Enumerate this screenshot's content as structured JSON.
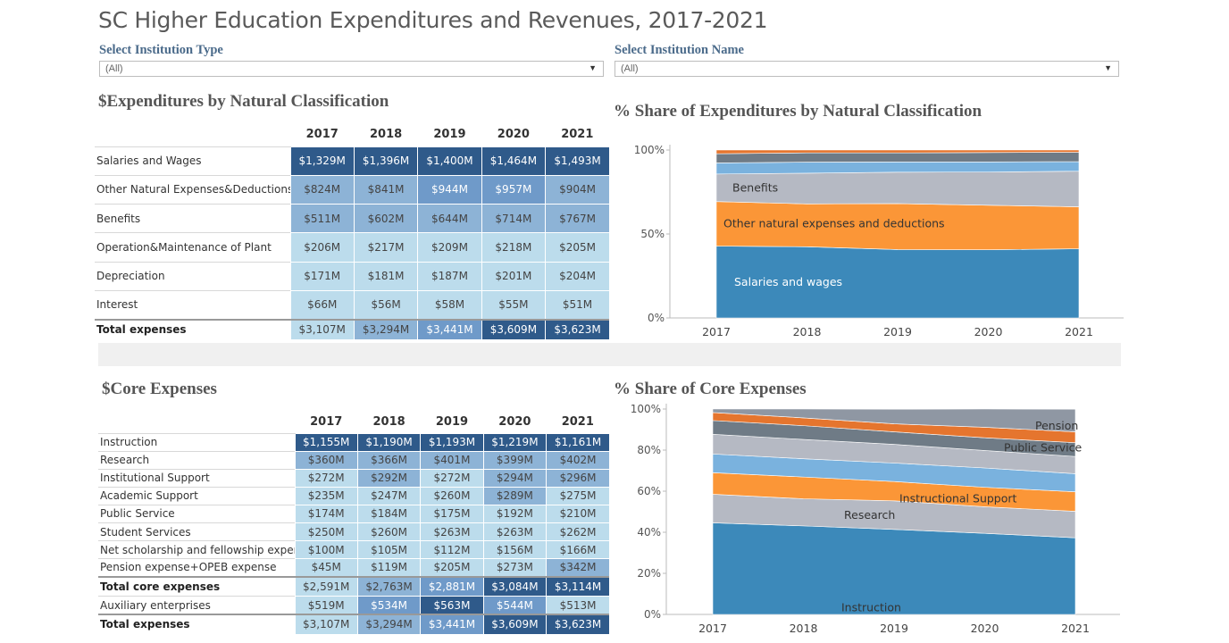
{
  "title": "SC Higher Education Expenditures and Revenues, 2017-2021",
  "filters": {
    "institution_type": {
      "label": "Select Institution Type",
      "value": "(All)"
    },
    "institution_name": {
      "label": "Select Institution Name",
      "value": "(All)"
    }
  },
  "colors": {
    "heat_light": "#bcdcec",
    "heat_mid": "#8db3d6",
    "heat_midhigh": "#6f9ac9",
    "heat_dark": "#2f5a8a",
    "salaries": "#3c89ba",
    "orange": "#fb9637",
    "gray_light": "#b5b9c3",
    "blue_light": "#7ab2de",
    "gray_dark": "#6f7b86",
    "orange_dark": "#e5752e",
    "gray_mid": "#8f97a3"
  },
  "expenditures_table": {
    "title": "$Expenditures by Natural Classification",
    "years": [
      "2017",
      "2018",
      "2019",
      "2020",
      "2021"
    ],
    "rows": [
      {
        "label": "Salaries and Wages",
        "values": [
          "$1,329M",
          "$1,396M",
          "$1,400M",
          "$1,464M",
          "$1,493M"
        ],
        "shades": [
          "dark",
          "dark",
          "dark",
          "dark",
          "dark"
        ]
      },
      {
        "label": "Other Natural Expenses&Deductions",
        "values": [
          "$824M",
          "$841M",
          "$944M",
          "$957M",
          "$904M"
        ],
        "shades": [
          "mid",
          "mid",
          "midhigh",
          "midhigh",
          "mid"
        ]
      },
      {
        "label": "Benefits",
        "values": [
          "$511M",
          "$602M",
          "$644M",
          "$714M",
          "$767M"
        ],
        "shades": [
          "mid",
          "mid",
          "mid",
          "mid",
          "mid"
        ]
      },
      {
        "label": "Operation&Maintenance of Plant",
        "values": [
          "$206M",
          "$217M",
          "$209M",
          "$218M",
          "$205M"
        ],
        "shades": [
          "light",
          "light",
          "light",
          "light",
          "light"
        ]
      },
      {
        "label": "Depreciation",
        "values": [
          "$171M",
          "$181M",
          "$187M",
          "$201M",
          "$204M"
        ],
        "shades": [
          "light",
          "light",
          "light",
          "light",
          "light"
        ]
      },
      {
        "label": "Interest",
        "values": [
          "$66M",
          "$56M",
          "$58M",
          "$55M",
          "$51M"
        ],
        "shades": [
          "light",
          "light",
          "light",
          "light",
          "light"
        ]
      }
    ],
    "total": {
      "label": "Total expenses",
      "values": [
        "$3,107M",
        "$3,294M",
        "$3,441M",
        "$3,609M",
        "$3,623M"
      ],
      "shades": [
        "light",
        "mid",
        "midhigh",
        "dark",
        "dark"
      ]
    }
  },
  "core_table": {
    "title": "$Core Expenses",
    "years": [
      "2017",
      "2018",
      "2019",
      "2020",
      "2021"
    ],
    "rows": [
      {
        "label": "Instruction",
        "values": [
          "$1,155M",
          "$1,190M",
          "$1,193M",
          "$1,219M",
          "$1,161M"
        ],
        "shades": [
          "dark",
          "dark",
          "dark",
          "dark",
          "dark"
        ],
        "bold": false
      },
      {
        "label": "Research",
        "values": [
          "$360M",
          "$366M",
          "$401M",
          "$399M",
          "$402M"
        ],
        "shades": [
          "mid",
          "mid",
          "mid",
          "mid",
          "mid"
        ],
        "bold": false
      },
      {
        "label": "Institutional Support",
        "values": [
          "$272M",
          "$292M",
          "$272M",
          "$294M",
          "$296M"
        ],
        "shades": [
          "light",
          "mid",
          "light",
          "mid",
          "mid"
        ],
        "bold": false
      },
      {
        "label": "Academic Support",
        "values": [
          "$235M",
          "$247M",
          "$260M",
          "$289M",
          "$275M"
        ],
        "shades": [
          "light",
          "light",
          "light",
          "mid",
          "light"
        ],
        "bold": false
      },
      {
        "label": "Public Service",
        "values": [
          "$174M",
          "$184M",
          "$175M",
          "$192M",
          "$210M"
        ],
        "shades": [
          "light",
          "light",
          "light",
          "light",
          "light"
        ],
        "bold": false
      },
      {
        "label": "Student Services",
        "values": [
          "$250M",
          "$260M",
          "$263M",
          "$263M",
          "$262M"
        ],
        "shades": [
          "light",
          "light",
          "light",
          "light",
          "light"
        ],
        "bold": false
      },
      {
        "label": "Net scholarship and fellowship expen..",
        "values": [
          "$100M",
          "$105M",
          "$112M",
          "$156M",
          "$166M"
        ],
        "shades": [
          "light",
          "light",
          "light",
          "light",
          "light"
        ],
        "bold": false
      },
      {
        "label": "Pension expense+OPEB expense",
        "values": [
          "$45M",
          "$119M",
          "$205M",
          "$273M",
          "$342M"
        ],
        "shades": [
          "light",
          "light",
          "light",
          "light",
          "mid"
        ],
        "bold": false
      },
      {
        "label": "Total core expenses",
        "values": [
          "$2,591M",
          "$2,763M",
          "$2,881M",
          "$3,084M",
          "$3,114M"
        ],
        "shades": [
          "light",
          "mid",
          "midhigh",
          "dark",
          "dark"
        ],
        "bold": true
      },
      {
        "label": "Auxiliary enterprises",
        "values": [
          "$519M",
          "$534M",
          "$563M",
          "$544M",
          "$513M"
        ],
        "shades": [
          "light",
          "midhigh",
          "dark",
          "midhigh",
          "light"
        ],
        "bold": false
      },
      {
        "label": "Total expenses",
        "values": [
          "$3,107M",
          "$3,294M",
          "$3,441M",
          "$3,609M",
          "$3,623M"
        ],
        "shades": [
          "light",
          "mid",
          "midhigh",
          "dark",
          "dark"
        ],
        "bold": true
      }
    ]
  },
  "chart_data": [
    {
      "type": "area",
      "stacked": true,
      "normalized": true,
      "title": "% Share of Expenditures by Natural Classification",
      "x": [
        "2017",
        "2018",
        "2019",
        "2020",
        "2021"
      ],
      "ylim": [
        0,
        100
      ],
      "yticks": [
        "0%",
        "50%",
        "100%"
      ],
      "ytick_values": [
        0,
        50,
        100
      ],
      "series": [
        {
          "name": "Salaries and wages",
          "label": "Salaries and wages",
          "color_key": "salaries",
          "values": [
            42.8,
            42.4,
            40.7,
            40.6,
            41.2
          ]
        },
        {
          "name": "Other natural expenses and deductions",
          "label": "Other natural expenses and deductions",
          "color_key": "orange",
          "values": [
            26.5,
            25.5,
            27.4,
            26.5,
            25.0
          ]
        },
        {
          "name": "Benefits",
          "label": "Benefits",
          "color_key": "gray_light",
          "values": [
            16.4,
            18.3,
            18.7,
            19.8,
            21.2
          ]
        },
        {
          "name": "Operation&Maintenance of Plant",
          "label": "",
          "color_key": "blue_light",
          "values": [
            6.6,
            6.6,
            6.1,
            6.0,
            5.7
          ]
        },
        {
          "name": "Depreciation",
          "label": "",
          "color_key": "gray_dark",
          "values": [
            5.5,
            5.5,
            5.4,
            5.6,
            5.6
          ]
        },
        {
          "name": "Interest",
          "label": "",
          "color_key": "orange_dark",
          "values": [
            2.2,
            1.7,
            1.7,
            1.5,
            1.3
          ]
        }
      ]
    },
    {
      "type": "area",
      "stacked": true,
      "normalized": true,
      "title": "% Share of Core Expenses",
      "x": [
        "2017",
        "2018",
        "2019",
        "2020",
        "2021"
      ],
      "ylim": [
        0,
        100
      ],
      "yticks": [
        "0%",
        "20%",
        "40%",
        "60%",
        "80%",
        "100%"
      ],
      "ytick_values": [
        0,
        20,
        40,
        60,
        80,
        100
      ],
      "series": [
        {
          "name": "Instruction",
          "label": "Instruction",
          "color_key": "salaries",
          "values": [
            44.6,
            43.1,
            41.4,
            39.5,
            37.3
          ]
        },
        {
          "name": "Research",
          "label": "Research",
          "color_key": "gray_light",
          "values": [
            13.9,
            13.2,
            13.9,
            12.9,
            12.9
          ]
        },
        {
          "name": "Institutional Support",
          "label": "Instructional Support",
          "color_key": "orange",
          "values": [
            10.5,
            10.6,
            9.4,
            9.5,
            9.5
          ]
        },
        {
          "name": "Academic Support",
          "label": "",
          "color_key": "blue_light",
          "values": [
            9.1,
            8.9,
            9.0,
            9.4,
            8.8
          ]
        },
        {
          "name": "Student Services",
          "label": "",
          "color_key": "gray_light",
          "values": [
            9.6,
            9.4,
            9.1,
            8.5,
            8.4
          ]
        },
        {
          "name": "Public Service",
          "label": "Public Service",
          "color_key": "gray_dark",
          "values": [
            6.7,
            6.7,
            6.1,
            6.2,
            6.7
          ]
        },
        {
          "name": "Net scholarship and fellowship expenses",
          "label": "",
          "color_key": "orange_dark",
          "values": [
            3.9,
            3.8,
            3.9,
            5.1,
            5.3
          ]
        },
        {
          "name": "Pension expense+OPEB expense",
          "label": "Pension",
          "color_key": "gray_mid",
          "values": [
            1.7,
            4.3,
            7.1,
            8.9,
            11.0
          ]
        }
      ]
    }
  ]
}
